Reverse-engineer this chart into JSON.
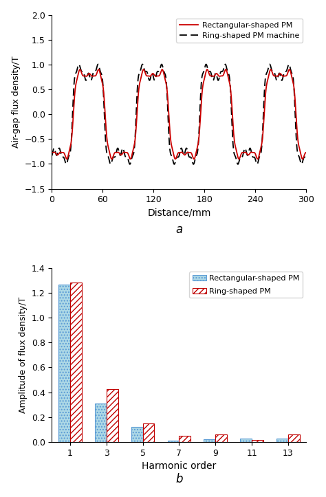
{
  "top_plot": {
    "xlabel": "Distance/mm",
    "ylabel": "Air-gap flux density/T",
    "xlim": [
      0,
      300
    ],
    "ylim": [
      -1.5,
      2.0
    ],
    "yticks": [
      -1.5,
      -1.0,
      -0.5,
      0,
      0.5,
      1.0,
      1.5,
      2.0
    ],
    "xticks": [
      0,
      60,
      120,
      180,
      240,
      300
    ],
    "rect_color": "#cc0000",
    "ring_color": "#000000",
    "label_a": "a",
    "legend_rect": "Rectangular-shaped PM",
    "legend_ring": "Ring-shaped PM machine"
  },
  "bottom_plot": {
    "xlabel": "Harmonic order",
    "ylabel": "Amplitude of flux density/T",
    "ylim": [
      0,
      1.4
    ],
    "yticks": [
      0,
      0.2,
      0.4,
      0.6,
      0.8,
      1.0,
      1.2,
      1.4
    ],
    "xtick_labels": [
      "1",
      "3",
      "5",
      "7",
      "9",
      "11",
      "13"
    ],
    "label_b": "b",
    "rect_face_color": "#add8e6",
    "ring_face_color": "#ffffff",
    "rect_edge_color": "#5b9bd5",
    "ring_edge_color": "#c00000",
    "legend_rect": "Rectangular-shaped PM",
    "legend_ring": "Ring-shaped PM",
    "rect_values": [
      1.265,
      0.31,
      0.12,
      0.01,
      0.02,
      0.025,
      0.025
    ],
    "ring_values": [
      1.285,
      0.425,
      0.15,
      0.05,
      0.06,
      0.018,
      0.06
    ]
  }
}
